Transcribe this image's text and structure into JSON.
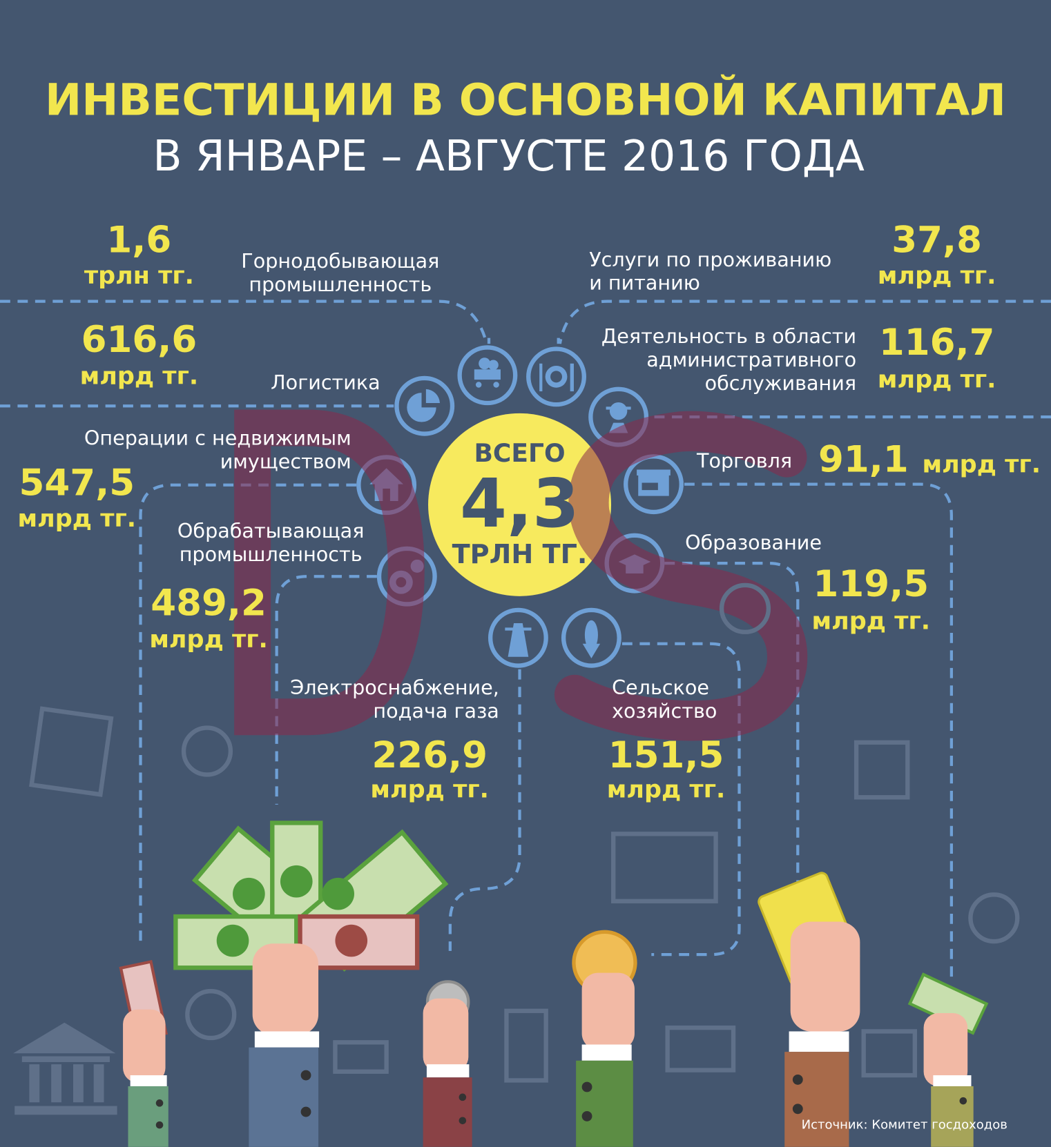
{
  "title": {
    "line1": "ИНВЕСТИЦИИ В ОСНОВНОЙ КАПИТАЛ",
    "line2": "В ЯНВАРЕ – АВГУСТЕ 2016 ГОДА"
  },
  "total": {
    "label": "ВСЕГО",
    "value": "4,3",
    "unit": "ТРЛН ТГ."
  },
  "sectors": [
    {
      "name": "Горнодобывающая промышленность",
      "value": "1,6",
      "unit": "трлн тг.",
      "icon": "mine-cart-icon"
    },
    {
      "name": "Услуги по проживанию и питанию",
      "value": "37,8",
      "unit": "млрд тг.",
      "icon": "plate-cutlery-icon"
    },
    {
      "name": "Логистика",
      "value": "616,6",
      "unit": "млрд тг.",
      "icon": "pie-chart-icon"
    },
    {
      "name": "Деятельность в области административного обслуживания",
      "value": "116,7",
      "unit": "млрд тг.",
      "icon": "worker-icon"
    },
    {
      "name": "Операции с недвижимым имуществом",
      "value": "547,5",
      "unit": "млрд тг.",
      "icon": "house-icon"
    },
    {
      "name": "Торговля",
      "value": "91,1",
      "unit": "млрд тг.",
      "icon": "shop-open-icon"
    },
    {
      "name": "Обрабатывающая промышленность",
      "value": "489,2",
      "unit": "млрд тг.",
      "icon": "gears-icon"
    },
    {
      "name": "Образование",
      "value": "119,5",
      "unit": "млрд тг.",
      "icon": "graduation-cap-icon"
    },
    {
      "name": "Электроснабжение, подача газа",
      "value": "226,9",
      "unit": "млрд тг.",
      "icon": "power-tower-icon"
    },
    {
      "name": "Сельское хозяйство",
      "value": "151,5",
      "unit": "млрд тг.",
      "icon": "corn-icon"
    }
  ],
  "labels": {
    "mining": [
      "Горнодобывающая",
      "промышленность"
    ],
    "hospitality": [
      "Услуги по проживанию",
      "и питанию"
    ],
    "admin": [
      "Деятельность в области",
      "административного",
      "обслуживания"
    ],
    "realty": [
      "Операции с недвижимым",
      "имуществом"
    ],
    "manufacturing": [
      "Обрабатывающая",
      "промышленность"
    ],
    "power": [
      "Электроснабжение,",
      "подача газа"
    ],
    "agri": [
      "Сельское",
      "хозяйство"
    ]
  },
  "watermark": "DS",
  "source": "Источник: Комитет госдоходов",
  "colors": {
    "background": "#44566f",
    "accent": "#f2e64e",
    "icon": "#6fa0d6",
    "watermark": "#8a2a4a"
  }
}
